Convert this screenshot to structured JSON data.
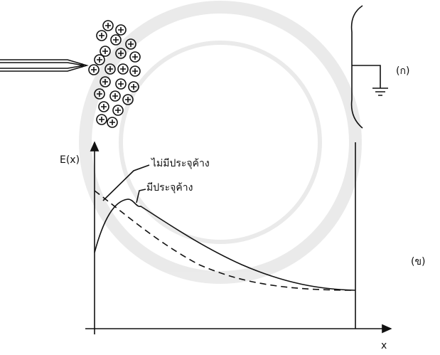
{
  "panel_a": {
    "label": "(ก)"
  },
  "panel_b": {
    "label": "(ข)",
    "y_axis_label": "E(x)",
    "x_axis_label": "x",
    "curves": [
      {
        "label": "ไม่มีประจุค้าง"
      },
      {
        "label": "มีประจุค้าง"
      }
    ]
  }
}
